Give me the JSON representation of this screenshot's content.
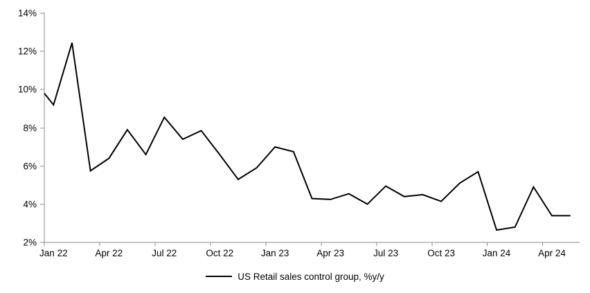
{
  "chart_data": {
    "type": "line",
    "title": "",
    "legend": {
      "label": "US Retail sales control group, %y/y",
      "position": "bottom-center"
    },
    "background": "#ffffff",
    "axis_color": "#8c8c8c",
    "grid": "off",
    "y": {
      "min": 2,
      "max": 14,
      "tick_step": 2,
      "tick_labels": [
        "2%",
        "4%",
        "6%",
        "8%",
        "10%",
        "12%",
        "14%"
      ]
    },
    "x": {
      "categories": [
        "Jan 22",
        "Feb 22",
        "Mar 22",
        "Apr 22",
        "May 22",
        "Jun 22",
        "Jul 22",
        "Aug 22",
        "Sep 22",
        "Oct 22",
        "Nov 22",
        "Dec 22",
        "Jan 23",
        "Feb 23",
        "Mar 23",
        "Apr 23",
        "May 23",
        "Jun 23",
        "Jul 23",
        "Aug 23",
        "Sep 23",
        "Oct 23",
        "Nov 23",
        "Dec 23",
        "Jan 24",
        "Feb 24",
        "Mar 24",
        "Apr 24",
        "May 24"
      ],
      "tick_label_every": 3,
      "tick_labels": [
        "Jan 22",
        "Apr 22",
        "Jul 22",
        "Oct 22",
        "Jan 23",
        "Apr 23",
        "Jul 23",
        "Oct 23",
        "Jan 24",
        "Apr 24"
      ]
    },
    "series": [
      {
        "name": "US Retail sales control group, %y/y",
        "color": "#000000",
        "line_width": 2,
        "edge_start_value": 9.8,
        "values": [
          9.2,
          12.45,
          5.75,
          6.4,
          7.9,
          6.6,
          8.55,
          7.4,
          7.85,
          6.6,
          5.3,
          5.9,
          7.0,
          6.75,
          4.3,
          4.25,
          4.55,
          4.0,
          4.95,
          4.4,
          4.5,
          4.15,
          5.1,
          5.7,
          2.65,
          2.8,
          4.9,
          3.4,
          3.4
        ]
      }
    ]
  }
}
